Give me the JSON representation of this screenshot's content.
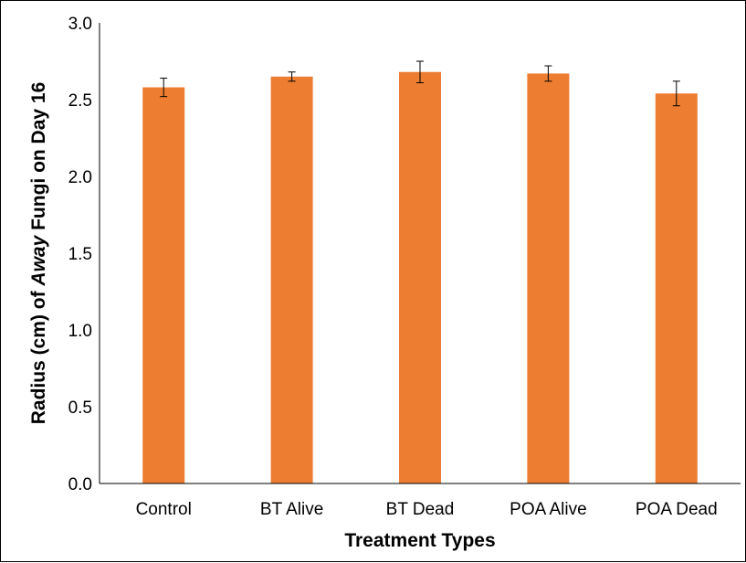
{
  "chart_data": {
    "type": "bar",
    "categories": [
      "Control",
      "BT Alive",
      "BT Dead",
      "POA Alive",
      "POA Dead"
    ],
    "values": [
      2.58,
      2.65,
      2.68,
      2.67,
      2.54
    ],
    "error": [
      0.06,
      0.03,
      0.07,
      0.05,
      0.08
    ],
    "xlabel": "Treatment Types",
    "ylabel_parts": [
      "Radius (cm) of ",
      "Away",
      " Fungi on Day 16"
    ],
    "ylim": [
      0,
      3.0
    ],
    "yticks": [
      "0.0",
      "0.5",
      "1.0",
      "1.5",
      "2.0",
      "2.5",
      "3.0"
    ],
    "grid": false,
    "bar_color": "#ED7D31"
  }
}
